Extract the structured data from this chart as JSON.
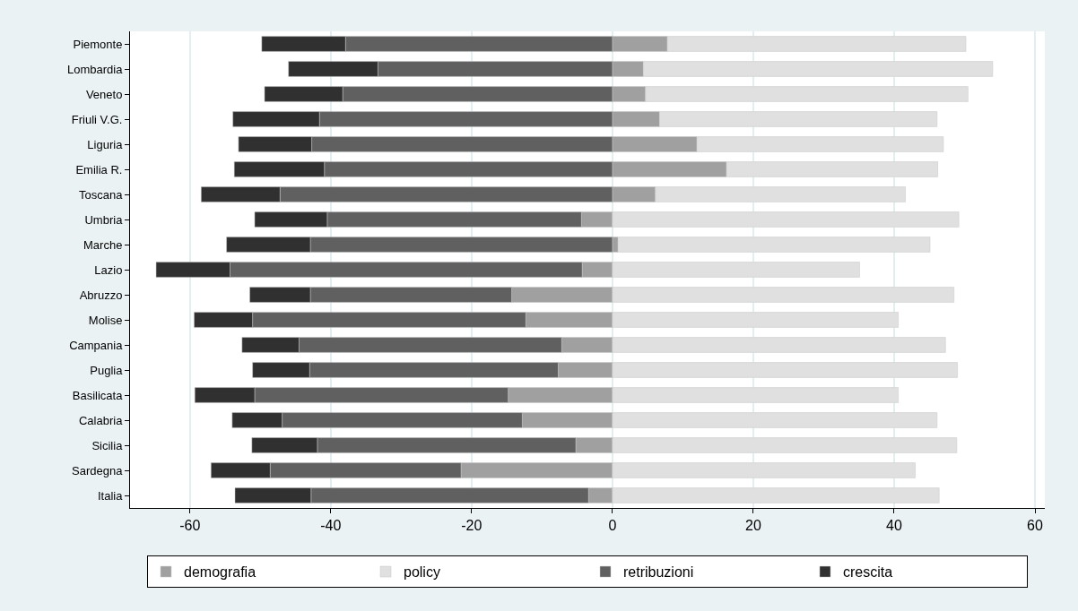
{
  "chart_data": {
    "type": "bar",
    "orientation": "horizontal",
    "stacked": true,
    "categories": [
      "Piemonte",
      "Lombardia",
      "Veneto",
      "Friuli V.G.",
      "Liguria",
      "Emilia R.",
      "Toscana",
      "Umbria",
      "Marche",
      "Lazio",
      "Abruzzo",
      "Molise",
      "Campania",
      "Puglia",
      "Basilicata",
      "Calabria",
      "Sicilia",
      "Sardegna",
      "Italia"
    ],
    "series": [
      {
        "name": "demografia",
        "color": "#a0a0a0",
        "values": [
          7.8,
          4.4,
          4.7,
          6.7,
          12.0,
          16.2,
          6.1,
          -4.4,
          0.8,
          -4.3,
          -14.3,
          -12.3,
          -7.2,
          -7.7,
          -14.8,
          -12.8,
          -5.2,
          -21.5,
          -3.4
        ]
      },
      {
        "name": "policy",
        "color": "#e0e0e0",
        "values": [
          42.4,
          49.6,
          45.8,
          39.4,
          35.0,
          30.0,
          35.5,
          49.2,
          44.3,
          35.1,
          48.5,
          40.6,
          47.3,
          49.0,
          40.6,
          46.1,
          48.9,
          43.0,
          46.4
        ]
      },
      {
        "name": "retribuzioni",
        "color": "#606060",
        "values": [
          -37.9,
          -33.3,
          -38.3,
          -41.6,
          -42.7,
          -40.9,
          -47.2,
          -36.1,
          -42.9,
          -50.0,
          -28.6,
          -38.8,
          -37.3,
          -35.3,
          -36.0,
          -34.1,
          -36.7,
          -27.1,
          -39.4
        ]
      },
      {
        "name": "crescita",
        "color": "#303030",
        "values": [
          -11.9,
          -12.7,
          -11.1,
          -12.3,
          -10.4,
          -12.8,
          -11.2,
          -10.3,
          -11.9,
          -10.5,
          -8.6,
          -8.3,
          -8.1,
          -8.1,
          -8.5,
          -7.1,
          -9.3,
          -8.4,
          -10.8
        ]
      }
    ],
    "xlim": [
      -68.5,
      61.4
    ],
    "xticks": [
      -60,
      -40,
      -20,
      0,
      20,
      40,
      60
    ],
    "grid": "x",
    "legend": "bottom"
  }
}
